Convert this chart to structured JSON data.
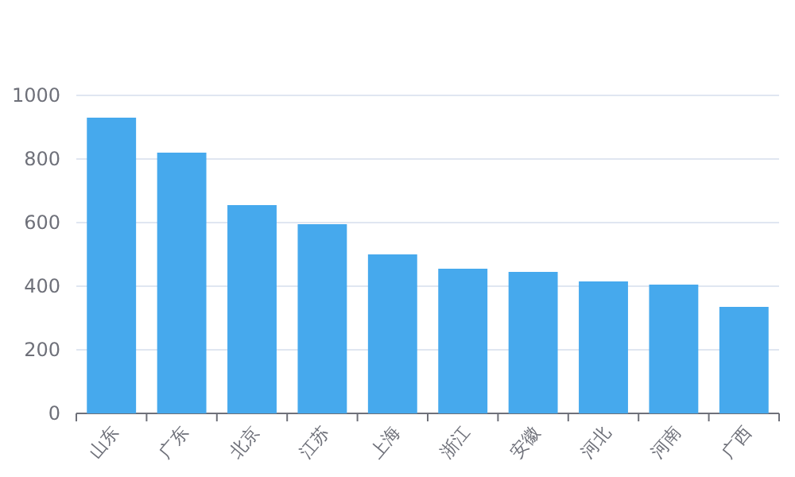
{
  "chart_data": {
    "type": "bar",
    "categories": [
      "山东",
      "广东",
      "北京",
      "江苏",
      "上海",
      "浙江",
      "安徽",
      "河北",
      "河南",
      "广西"
    ],
    "values": [
      930,
      820,
      655,
      595,
      500,
      455,
      445,
      415,
      405,
      335
    ],
    "color": "#46a9ed",
    "ylim": [
      0,
      1000
    ],
    "yticks": [
      0,
      200,
      400,
      600,
      800,
      1000
    ],
    "grid": "y"
  }
}
